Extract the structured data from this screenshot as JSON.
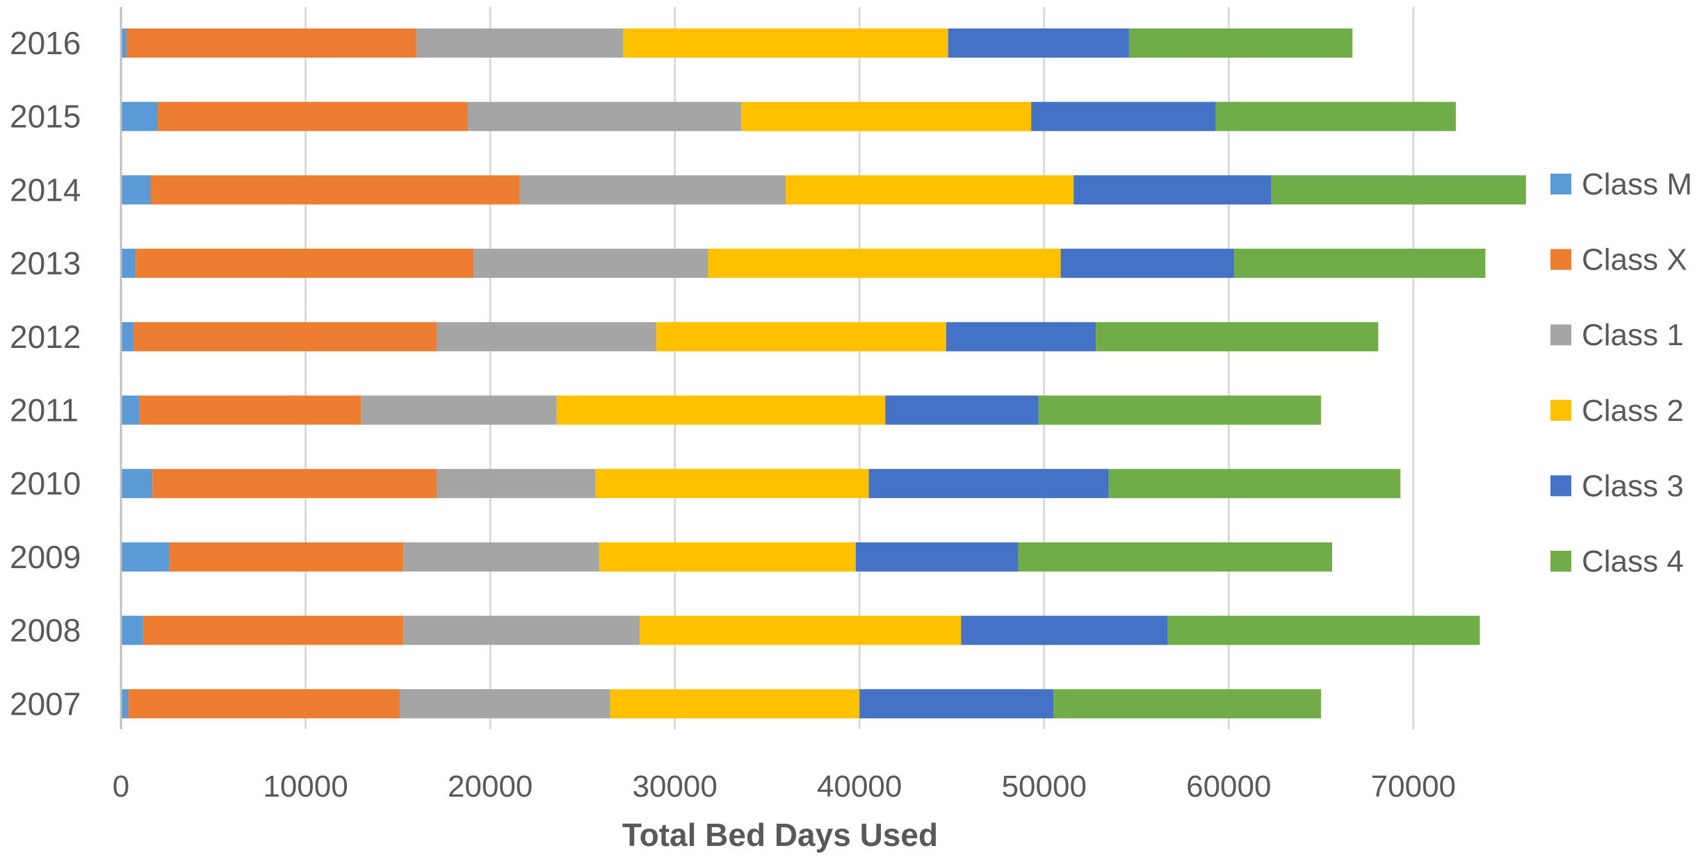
{
  "chart_data": {
    "type": "bar",
    "orientation": "horizontal",
    "stacked": true,
    "title": "",
    "xlabel": "Total Bed Days Used",
    "ylabel": "",
    "xlim": [
      0,
      76000
    ],
    "xticks": [
      0,
      10000,
      20000,
      30000,
      40000,
      50000,
      60000,
      70000
    ],
    "grid": true,
    "legend_position": "right",
    "categories": [
      "2007",
      "2008",
      "2009",
      "2010",
      "2011",
      "2012",
      "2013",
      "2014",
      "2015",
      "2016"
    ],
    "series": [
      {
        "name": "Class M",
        "color": "#5B9BD5",
        "values": [
          400,
          1200,
          2600,
          1700,
          1000,
          700,
          800,
          1600,
          2000,
          300
        ]
      },
      {
        "name": "Class X",
        "color": "#ED7D31",
        "values": [
          14700,
          14100,
          12700,
          15400,
          12000,
          16400,
          18300,
          20000,
          16800,
          15700
        ]
      },
      {
        "name": "Class 1",
        "color": "#A5A5A5",
        "values": [
          11400,
          12800,
          10600,
          8600,
          10600,
          11900,
          12700,
          14400,
          14800,
          11200
        ]
      },
      {
        "name": "Class 2",
        "color": "#FFC000",
        "values": [
          13500,
          17400,
          13900,
          14800,
          17800,
          15700,
          19100,
          15600,
          15700,
          17600
        ]
      },
      {
        "name": "Class 3",
        "color": "#4472C4",
        "values": [
          10500,
          11200,
          8800,
          13000,
          8300,
          8100,
          9400,
          10700,
          10000,
          9800
        ]
      },
      {
        "name": "Class 4",
        "color": "#70AD47",
        "values": [
          14500,
          16900,
          17000,
          15800,
          15300,
          15300,
          13600,
          13800,
          13000,
          12100
        ]
      }
    ]
  }
}
